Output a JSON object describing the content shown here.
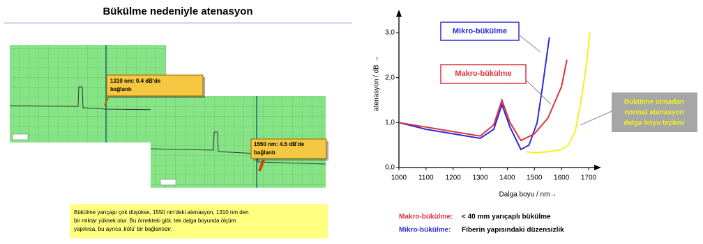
{
  "title": "Bükülme nedeniyle atenasyon",
  "callouts": [
    [
      "1310 nm: 0.4 dB'de",
      "bağlantı"
    ],
    [
      "1550 nm: 4.5 dB'de",
      "bağlantı"
    ]
  ],
  "note": [
    "Bükülme yarıçapı çok düşükse, 1550 nm'deki atenasyon, 1310 nm den",
    "bir miktar yüksek olur. Bu örnekteki gibi, tek dalga boyunda ölçüm",
    "yapılırsa, bu ayrıca ‚kötü' bir bağlantıdır."
  ],
  "chart_data": {
    "type": "line",
    "y_label": "atenasyon / dB →",
    "x_label": "Dalga boyu / nm→",
    "xlim": [
      1000,
      1700
    ],
    "xticks": [
      1000,
      1100,
      1200,
      1300,
      1400,
      1500,
      1600,
      1700
    ],
    "ylim": [
      0,
      3
    ],
    "yticks": [
      {
        "value": 0,
        "label": "0,0"
      },
      {
        "value": 1,
        "label": "1,0"
      },
      {
        "value": 2,
        "label": "2,0"
      },
      {
        "value": 3,
        "label": "3,0"
      }
    ],
    "series": [
      {
        "name": "Mikro-bükülme",
        "color": "#2a2ad8",
        "x": [
          1000,
          1100,
          1200,
          1300,
          1350,
          1380,
          1410,
          1450,
          1480,
          1510,
          1530,
          1555
        ],
        "values": [
          1.0,
          0.85,
          0.75,
          0.65,
          0.85,
          1.4,
          0.9,
          0.4,
          0.5,
          1.0,
          1.8,
          2.9
        ]
      },
      {
        "name": "Makro-bükülme",
        "color": "#e0303a",
        "x": [
          1000,
          1100,
          1200,
          1300,
          1350,
          1380,
          1410,
          1450,
          1500,
          1550,
          1600,
          1620
        ],
        "values": [
          1.0,
          0.9,
          0.8,
          0.7,
          0.95,
          1.5,
          1.0,
          0.6,
          0.75,
          1.1,
          1.8,
          2.4
        ]
      },
      {
        "name": [
          "Bükülme olmadan",
          "normal atenasyon",
          "dalga boyu tepkisi"
        ],
        "color": "#f2f21a",
        "x": [
          1470,
          1500,
          1550,
          1600,
          1625,
          1650,
          1670,
          1690,
          1705
        ],
        "values": [
          0.35,
          0.33,
          0.35,
          0.4,
          0.5,
          0.8,
          1.4,
          2.2,
          3.0
        ]
      }
    ],
    "legend": [
      [
        "Makro-bükülme:",
        "< 40 mm yarıçaplı bükülme"
      ],
      [
        "Mikro-bükülme:",
        "Fiberin yapısındaki düzensizlik"
      ]
    ]
  }
}
